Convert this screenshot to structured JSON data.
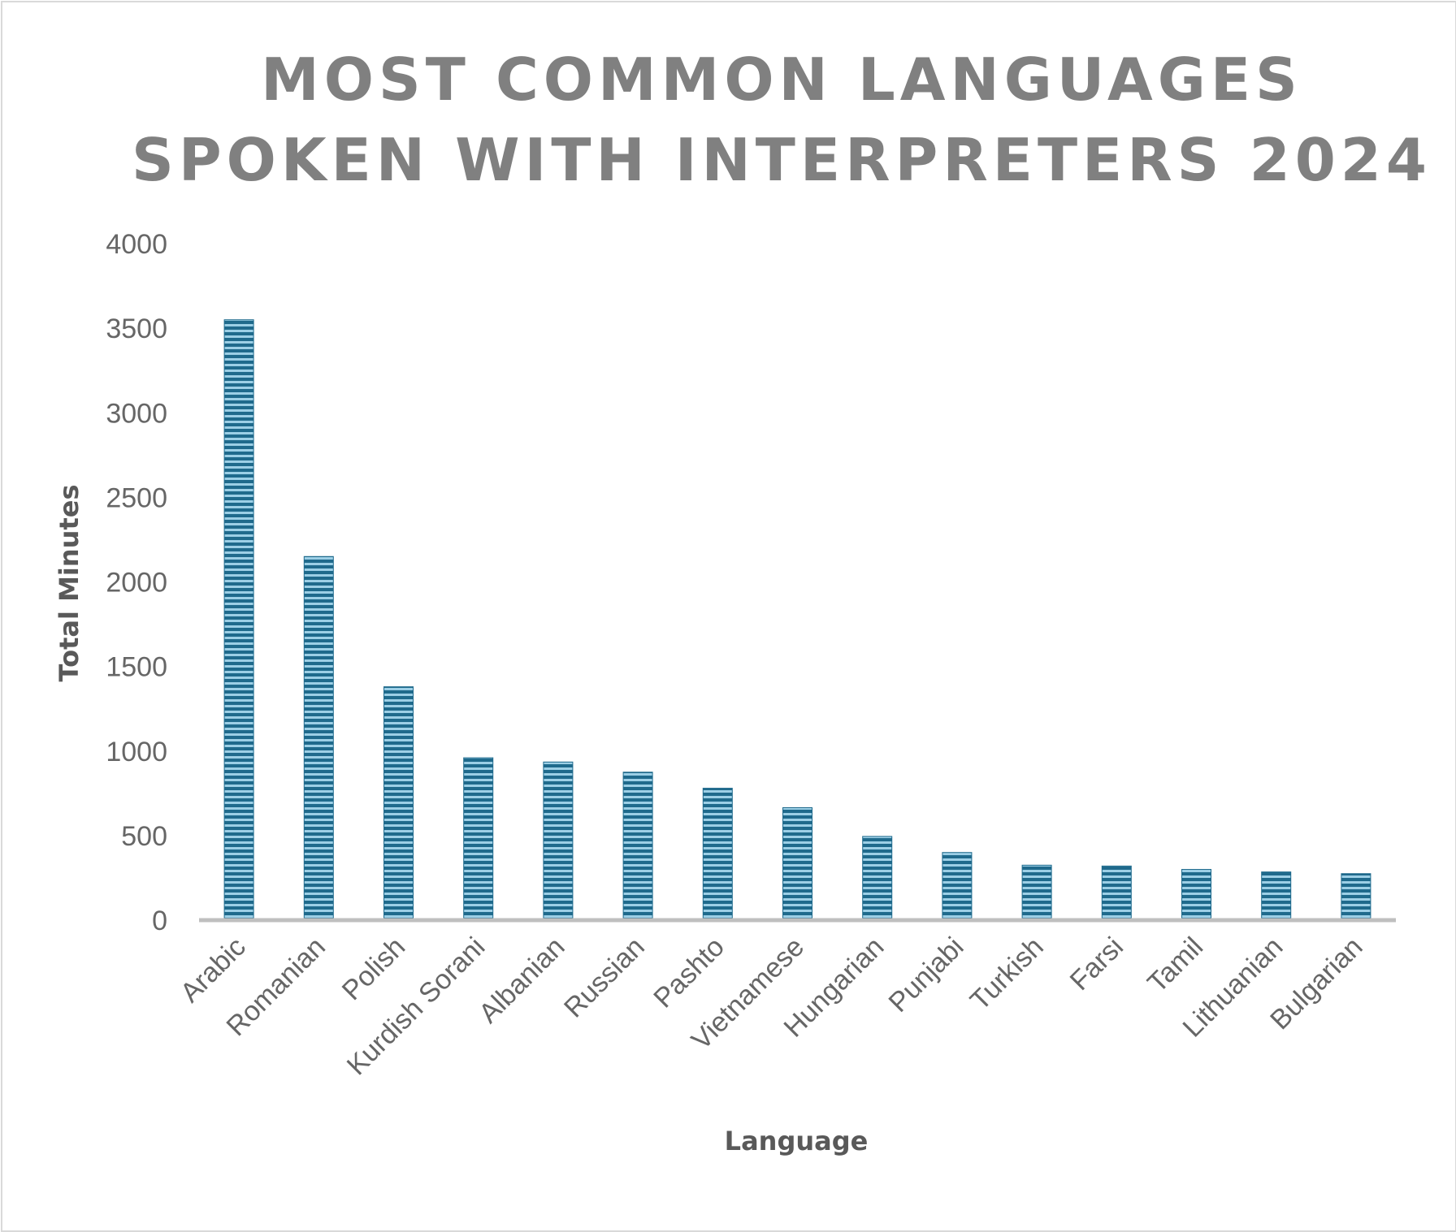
{
  "chart_data": {
    "type": "bar",
    "title_lines": [
      "MOST COMMON LANGUAGES",
      "SPOKEN WITH INTERPRETERS 2024"
    ],
    "xlabel": "Language",
    "ylabel": "Total Minutes",
    "ylim": [
      0,
      4000
    ],
    "yticks": [
      "0",
      "500",
      "1000",
      "1500",
      "2000",
      "2500",
      "3000",
      "3500",
      "4000"
    ],
    "categories": [
      "Arabic",
      "Romanian",
      "Polish",
      "Kurdish Sorani",
      "Albanian",
      "Russian",
      "Pashto",
      "Vietnamese",
      "Hungarian",
      "Punjabi",
      "Turkish",
      "Farsi",
      "Tamil",
      "Lithuanian",
      "Bulgarian"
    ],
    "values": [
      3550,
      2150,
      1380,
      960,
      935,
      875,
      780,
      665,
      495,
      400,
      325,
      320,
      300,
      285,
      275
    ],
    "grid": false,
    "legend": "none",
    "bar_color": "#1f6a8c",
    "bar_stripe_color": "#9ccfe6"
  }
}
